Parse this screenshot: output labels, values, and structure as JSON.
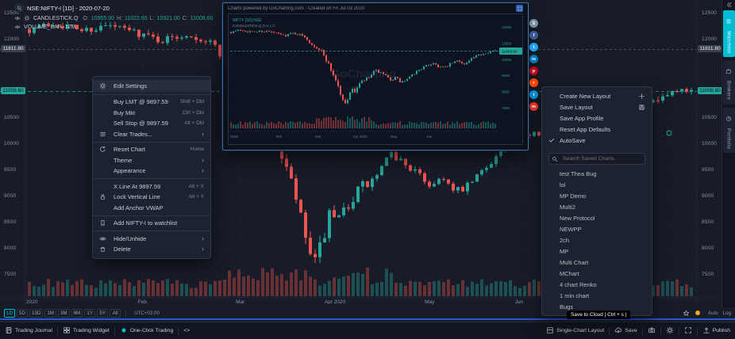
{
  "colors": {
    "bg": "#171c28",
    "accent": "#00bcd4",
    "green": "#26a69a",
    "red": "#ef5350",
    "muted": "#8a93a6",
    "orange": "#f5a623"
  },
  "legend": {
    "symbol": "NSE:NIFTY-I [1D] - 2020-07-20",
    "series_label": "CANDLESTICK.Q",
    "ohlc": [
      {
        "label": "O:",
        "value": "10955.00"
      },
      {
        "label": "H:",
        "value": "11022.65"
      },
      {
        "label": "L:",
        "value": "10921.00"
      },
      {
        "label": "C:",
        "value": "11008.60"
      }
    ],
    "volume_label": "VOLUME_BAR, 12M"
  },
  "price_axis": {
    "min": 7500,
    "max": 12500,
    "ticks": [
      "12500",
      "12000",
      "10500",
      "10000",
      "9500",
      "9000",
      "8500",
      "8000",
      "7500"
    ],
    "prev_level": "11811.80",
    "prev_level_price": 11811.8,
    "last_close": "11008.60",
    "last_close_price": 11008.6
  },
  "time_axis": {
    "labels": [
      {
        "text": "2020",
        "f": 0.0
      },
      {
        "text": "Feb",
        "f": 0.173
      },
      {
        "text": "Mar",
        "f": 0.321
      },
      {
        "text": "Apr 2020",
        "f": 0.464
      },
      {
        "text": "May",
        "f": 0.607
      },
      {
        "text": "Jun",
        "f": 0.742
      }
    ]
  },
  "context_menu": {
    "items": [
      {
        "label": "Edit Settings",
        "icon": "gear",
        "hl": true
      },
      {
        "divider": true
      },
      {
        "label": "Buy LMT @ 9897.59",
        "shortcut": "Shift + Dbl"
      },
      {
        "label": "Buy Mkt",
        "shortcut": "Ctrl + Dbl"
      },
      {
        "label": "Sell Stop @ 9897.59",
        "shortcut": "Alt + Dbl"
      },
      {
        "label": "Clear Trades...",
        "icon": "sliders",
        "submenu": true
      },
      {
        "divider": true
      },
      {
        "label": "Reset Chart",
        "icon": "reset",
        "shortcut": "Home"
      },
      {
        "label": "Theme",
        "submenu": true
      },
      {
        "label": "Appearance",
        "submenu": true
      },
      {
        "divider": true
      },
      {
        "label": "X Line At 9897.59",
        "shortcut": "Alt + X"
      },
      {
        "label": "Lock Vertical Line",
        "icon": "lock",
        "shortcut": "Alt + Y"
      },
      {
        "label": "Add Anchor VWAP"
      },
      {
        "divider": true
      },
      {
        "label": "Add NIFTY-I to watchlist",
        "icon": "bookmark"
      },
      {
        "divider": true
      },
      {
        "label": "Hide/Unhide",
        "icon": "eye",
        "submenu": true
      },
      {
        "label": "Delete",
        "icon": "trash",
        "submenu": true
      }
    ]
  },
  "layout_menu": {
    "items": [
      {
        "label": "Create New Layout",
        "right_icon": "plus"
      },
      {
        "label": "Save Layout",
        "right_icon": "floppy"
      },
      {
        "label": "Save App Profile"
      },
      {
        "label": "Reset App Defaults"
      },
      {
        "label": "AutoSave",
        "checked": true
      }
    ],
    "search_placeholder": "Search Saved Charts.",
    "saved_charts": [
      "test Thea Bug",
      "lol",
      "MP Demo",
      "Multi2",
      "New Protocol",
      "NEWPP",
      "2ch",
      "MP",
      "Multi Chart",
      "MChart",
      "4 chart Renko",
      "1 min chart",
      "Bugs"
    ]
  },
  "preview_popup": {
    "title": "Charts powered by GoCharting.com  -  Created on Fri Jul 03 2020",
    "legend1": "NIFTY [1D] NSE",
    "legend2": "CANDLESTICK.Q  O  H  L  C",
    "watermark": "GoCharting",
    "axis_ticks": [
      "12500",
      "11500",
      "10500",
      "9500",
      "8500",
      "7500"
    ],
    "last_close": "11008.60"
  },
  "social_icons": [
    {
      "name": "share",
      "color": "#78909c",
      "glyph": "S"
    },
    {
      "name": "facebook",
      "color": "#3b5998",
      "glyph": "f"
    },
    {
      "name": "twitter",
      "color": "#1da1f2",
      "glyph": "t"
    },
    {
      "name": "linkedin",
      "color": "#0077b5",
      "glyph": "in"
    },
    {
      "name": "pinterest",
      "color": "#bd081c",
      "glyph": "p"
    },
    {
      "name": "reddit",
      "color": "#ff4500",
      "glyph": "r"
    },
    {
      "name": "telegram",
      "color": "#0088cc",
      "glyph": "t"
    },
    {
      "name": "mail",
      "color": "#d93025",
      "glyph": "m"
    }
  ],
  "side_tabs": [
    {
      "label": "Watchlist",
      "icon": "list",
      "active": true
    },
    {
      "label": "Brokers",
      "icon": "briefcase",
      "active": false
    },
    {
      "label": "Portfolio",
      "icon": "pie",
      "active": false
    }
  ],
  "timeframe_bar": {
    "timeframes": [
      "1D",
      "5D",
      "15D",
      "1M",
      "3M",
      "6M",
      "1Y",
      "5Y",
      "All"
    ],
    "active": "1D",
    "timezone": "UTC+02:00",
    "auto": "Auto",
    "log": "Log"
  },
  "status_bar": {
    "left": [
      {
        "label": "Trading Journal",
        "icon": "journal"
      },
      {
        "label": "Trading Widget",
        "icon": "widget"
      },
      {
        "label": "One-Click Trading",
        "icon": "dot"
      },
      {
        "label": "<>",
        "icon": null
      }
    ],
    "right": [
      {
        "label": "Single-Chart Layout",
        "icon": "grid"
      },
      {
        "label": "Save",
        "icon": "cloud"
      },
      {
        "label": "",
        "icon": "camera"
      },
      {
        "label": "",
        "icon": "gear"
      },
      {
        "label": "",
        "icon": "expand"
      },
      {
        "label": "Publish",
        "icon": "upload"
      }
    ]
  },
  "tooltip": "Save to Cloud | Ctrl + s |",
  "chart_data": {
    "type": "candlestick",
    "symbol": "NSE:NIFTY-I",
    "interval": "1D",
    "visible_range": [
      "Jan 2020",
      "Jul 2020"
    ],
    "y_range": [
      7500,
      12500
    ],
    "anchors": [
      [
        0,
        12200
      ],
      [
        0.04,
        12320
      ],
      [
        0.08,
        12180
      ],
      [
        0.12,
        12260
      ],
      [
        0.16,
        12150
      ],
      [
        0.2,
        11980
      ],
      [
        0.24,
        12120
      ],
      [
        0.28,
        11900
      ],
      [
        0.3,
        11500
      ],
      [
        0.321,
        11250
      ],
      [
        0.34,
        11050
      ],
      [
        0.36,
        10500
      ],
      [
        0.38,
        9800
      ],
      [
        0.4,
        9100
      ],
      [
        0.415,
        8300
      ],
      [
        0.43,
        7650
      ],
      [
        0.445,
        8250
      ],
      [
        0.455,
        8700
      ],
      [
        0.464,
        8400
      ],
      [
        0.48,
        8850
      ],
      [
        0.5,
        9150
      ],
      [
        0.52,
        9300
      ],
      [
        0.545,
        9800
      ],
      [
        0.56,
        9700
      ],
      [
        0.58,
        9500
      ],
      [
        0.607,
        9200
      ],
      [
        0.625,
        9400
      ],
      [
        0.64,
        9080
      ],
      [
        0.66,
        9160
      ],
      [
        0.685,
        9500
      ],
      [
        0.71,
        9850
      ],
      [
        0.742,
        10100
      ],
      [
        0.765,
        10280
      ],
      [
        0.785,
        10050
      ],
      [
        0.81,
        9980
      ],
      [
        0.835,
        10250
      ],
      [
        0.86,
        10420
      ],
      [
        0.885,
        10180
      ],
      [
        0.91,
        10520
      ],
      [
        0.94,
        10780
      ],
      [
        0.97,
        10950
      ],
      [
        1,
        11008.6
      ]
    ]
  }
}
